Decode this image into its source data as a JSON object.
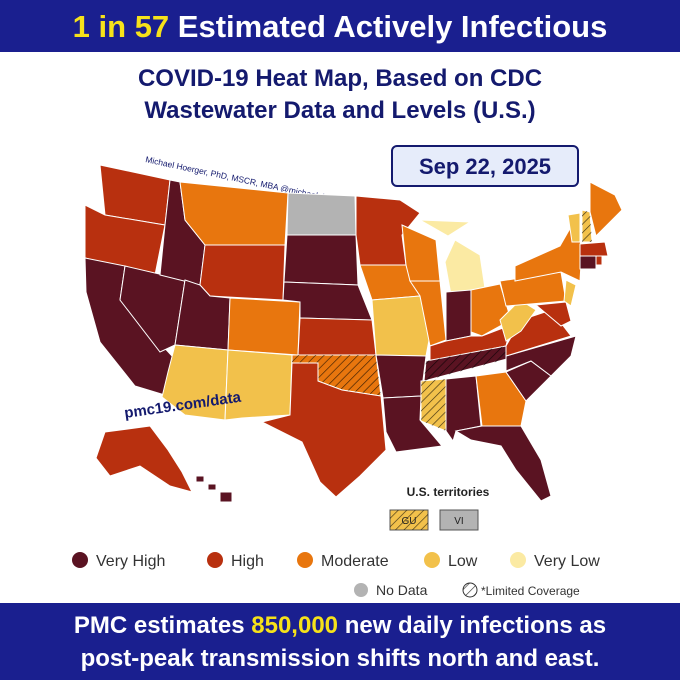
{
  "header": {
    "parts": [
      "1 in",
      "57",
      "Estimated Actively Infectious"
    ]
  },
  "title": [
    "COVID-19 Heat Map, Based on CDC",
    "Wastewater Data and Levels (U.S.)"
  ],
  "credit": "Michael Hoerger, PhD, MSCR, MBA  @michael_hoerger",
  "date": "Sep 22, 2025",
  "website": "pmc19.com/data",
  "territories": {
    "label": "U.S. territories",
    "items": [
      {
        "label": "GU",
        "level": 3,
        "limited": true
      },
      {
        "label": "VI",
        "level": 5
      }
    ]
  },
  "legend": {
    "levels": [
      {
        "label": "Very High",
        "color": "#5a1322"
      },
      {
        "label": "High",
        "color": "#b8300f"
      },
      {
        "label": "Moderate",
        "color": "#e8760e"
      },
      {
        "label": "Low",
        "color": "#f2c14b"
      },
      {
        "label": "Very Low",
        "color": "#fbeaa3"
      },
      {
        "label": "No Data",
        "color": "#b3b3b3"
      }
    ],
    "limited": "*Limited Coverage"
  },
  "footer": {
    "line1": [
      "PMC estimates",
      "850,000",
      "new daily infections as"
    ],
    "line2": "post-peak transmission shifts north and east."
  }
}
